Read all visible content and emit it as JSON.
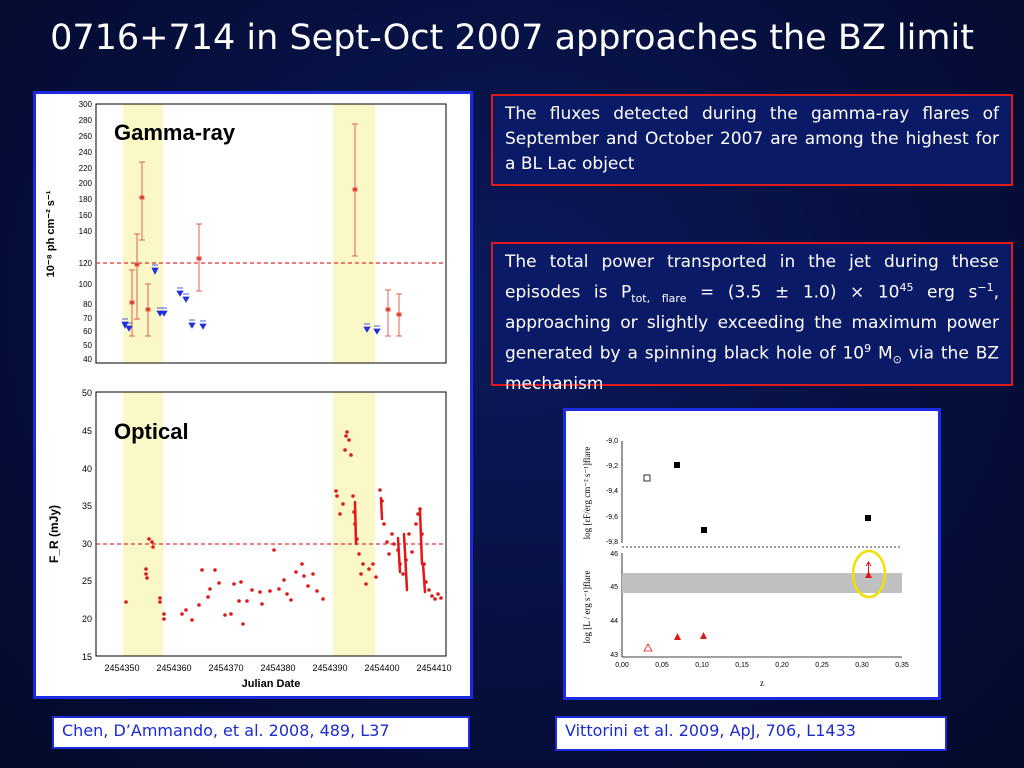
{
  "title": "0716+714 in Sept-Oct 2007 approaches the BZ limit",
  "left_figure": {
    "gamma_label": "Gamma-ray",
    "optical_label": "Optical",
    "gamma_ylabel": "10⁻⁸ ph cm⁻² s⁻¹",
    "optical_ylabel": "F_R (mJy)",
    "xlabel": "Julian Date",
    "gamma_yticks": [
      "300",
      "280",
      "260",
      "240",
      "220",
      "200",
      "180",
      "160",
      "140",
      "120",
      "100",
      "80",
      "70",
      "60",
      "50",
      "40"
    ],
    "optical_yticks": [
      "50",
      "45",
      "40",
      "35",
      "30",
      "25",
      "20",
      "15"
    ],
    "xticks": [
      "2454350",
      "2454360",
      "2454370",
      "2454380",
      "2454390",
      "2454400",
      "2454410"
    ]
  },
  "box1": {
    "text": "The fluxes detected during the gamma-ray flares of September and October 2007 are among the highest for a BL Lac object"
  },
  "box2": {
    "t1": "The total power transported in the jet during these episodes is P",
    "sub1": "tot, flare",
    "t2": " = (3.5 ± 1.0) × 10",
    "sup1": "45",
    "t3": " erg s",
    "sup2": "−1",
    "t4": ", approaching or slightly exceeding the maximum power generated by a spinning black hole of 10",
    "sup3": "9",
    "t5": " M",
    "sub2": "⊙",
    "t6": " via the BZ mechanism"
  },
  "right_figure": {
    "top_ylabel": "log [εF/erg cm⁻² s⁻¹]flare",
    "bottom_ylabel": "log [L / erg s⁻¹]flare",
    "xlabel": "z",
    "top_yticks": [
      "-9,0",
      "-9,2",
      "-9,4",
      "-9,6",
      "-9,8"
    ],
    "bottom_yticks": [
      "46",
      "45",
      "44",
      "43"
    ],
    "xticks": [
      "0,00",
      "0,05",
      "0,10",
      "0,15",
      "0,20",
      "0,25",
      "0,30",
      "0,35"
    ]
  },
  "ref_left": "Chen, D’Ammando, et al. 2008, 489, L37",
  "ref_right": "Vittorini et al. 2009, ApJ, 706, L1433",
  "colors": {
    "accent_blue": "#1a2be0",
    "accent_red": "#e01a1a",
    "background": "#060f3e"
  }
}
